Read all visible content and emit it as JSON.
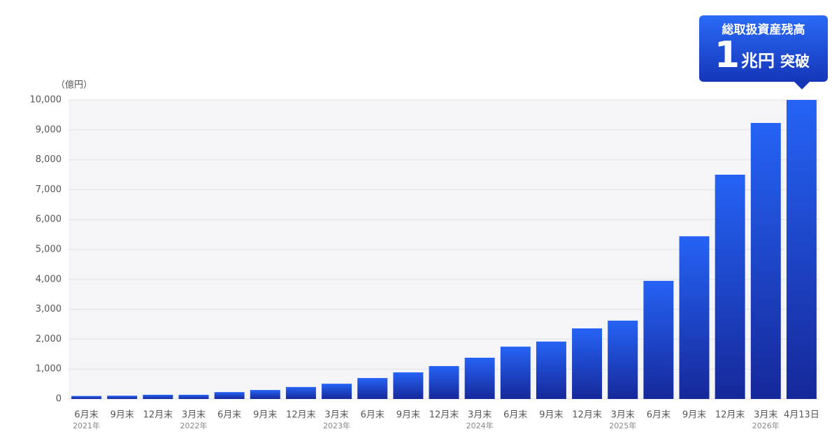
{
  "chart_data": {
    "type": "bar",
    "unit_label": "（億円）",
    "categories": [
      "6月末",
      "9月末",
      "12月末",
      "3月末",
      "6月末",
      "9月末",
      "12月末",
      "3月末",
      "6月末",
      "9月末",
      "12月末",
      "3月末",
      "6月末",
      "9月末",
      "12月末",
      "3月末",
      "6月末",
      "9月末",
      "12月末",
      "3月末",
      "4月13日"
    ],
    "year_labels": [
      "2021年",
      null,
      null,
      "2022年",
      null,
      null,
      null,
      "2023年",
      null,
      null,
      null,
      "2024年",
      null,
      null,
      null,
      "2025年",
      null,
      null,
      null,
      "2026年",
      null
    ],
    "values": [
      100,
      110,
      140,
      140,
      230,
      300,
      400,
      510,
      700,
      890,
      1100,
      1380,
      1750,
      1920,
      2360,
      2620,
      3950,
      5440,
      7500,
      9230,
      10000
    ],
    "color": "#2563f5",
    "ylim": [
      0,
      10000
    ],
    "yticks": [
      0,
      {
        "value": 1000,
        "label": "1,000"
      },
      {
        "value": 2000,
        "label": "2,000"
      },
      {
        "value": 3000,
        "label": "3,000"
      },
      {
        "value": 4000,
        "label": "4,000"
      },
      {
        "value": 5000,
        "label": "5,000"
      },
      {
        "value": 6000,
        "label": "6,000"
      },
      {
        "value": 7000,
        "label": "7,000"
      },
      {
        "value": 8000,
        "label": "8,000"
      },
      {
        "value": 9000,
        "label": "9,000"
      },
      {
        "value": 10000,
        "label": "10,000"
      }
    ],
    "grid": true,
    "callout": {
      "title": "総取扱資産残高",
      "big": "1",
      "unit": "兆円",
      "suffix": "突破"
    }
  }
}
